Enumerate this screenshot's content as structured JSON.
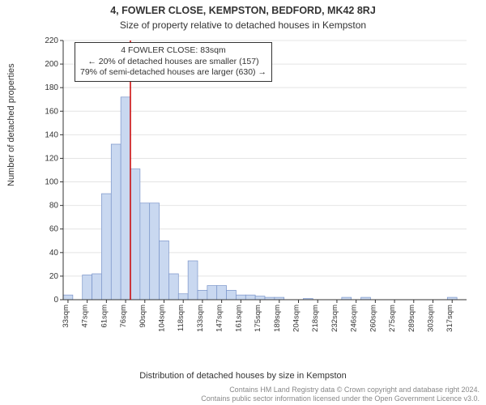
{
  "titles": {
    "line1": "4, FOWLER CLOSE, KEMPSTON, BEDFORD, MK42 8RJ",
    "line2": "Size of property relative to detached houses in Kempston"
  },
  "chart": {
    "type": "histogram",
    "ylabel": "Number of detached properties",
    "xlabel": "Distribution of detached houses by size in Kempston",
    "ylim": [
      0,
      220
    ],
    "ytick_step": 20,
    "yticks": [
      0,
      20,
      40,
      60,
      80,
      100,
      120,
      140,
      160,
      180,
      200,
      220
    ],
    "xticks": [
      "33sqm",
      "47sqm",
      "61sqm",
      "76sqm",
      "90sqm",
      "104sqm",
      "118sqm",
      "133sqm",
      "147sqm",
      "161sqm",
      "175sqm",
      "189sqm",
      "204sqm",
      "218sqm",
      "232sqm",
      "246sqm",
      "260sqm",
      "275sqm",
      "289sqm",
      "303sqm",
      "317sqm"
    ],
    "bar_color": "#c9d8f0",
    "bar_border": "#7a94c9",
    "grid_color": "#e4e4e4",
    "axis_color": "#333333",
    "marker_line_color": "#cc0000",
    "marker_x_index": 3.5,
    "values": [
      4,
      0,
      21,
      22,
      90,
      132,
      172,
      111,
      82,
      82,
      50,
      22,
      5,
      33,
      8,
      12,
      12,
      8,
      4,
      4,
      3,
      2,
      2,
      0,
      0,
      1,
      0,
      0,
      0,
      2,
      0,
      2,
      0,
      0,
      0,
      0,
      0,
      0,
      0,
      0,
      2,
      0
    ]
  },
  "annotation": {
    "l1": "4 FOWLER CLOSE: 83sqm",
    "l2": "← 20% of detached houses are smaller (157)",
    "l3": "79% of semi-detached houses are larger (630) →"
  },
  "footer": {
    "l1": "Contains HM Land Registry data © Crown copyright and database right 2024.",
    "l2": "Contains public sector information licensed under the Open Government Licence v3.0."
  }
}
